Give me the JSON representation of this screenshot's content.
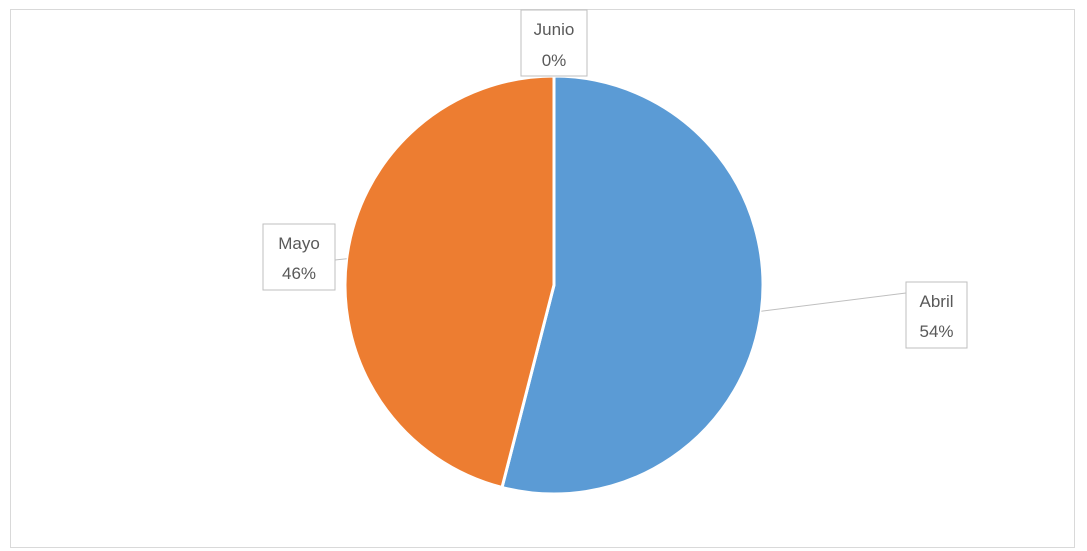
{
  "chart_data": {
    "type": "pie",
    "title": "",
    "categories": [
      "Abril",
      "Mayo",
      "Junio"
    ],
    "values": [
      54,
      46,
      0
    ],
    "labels": [
      "54%",
      "46%",
      "0%"
    ],
    "colors": [
      "#5b9bd5",
      "#ed7d31",
      "#a5a5a5"
    ],
    "legend": "none",
    "data_labels": "category-and-percent"
  }
}
